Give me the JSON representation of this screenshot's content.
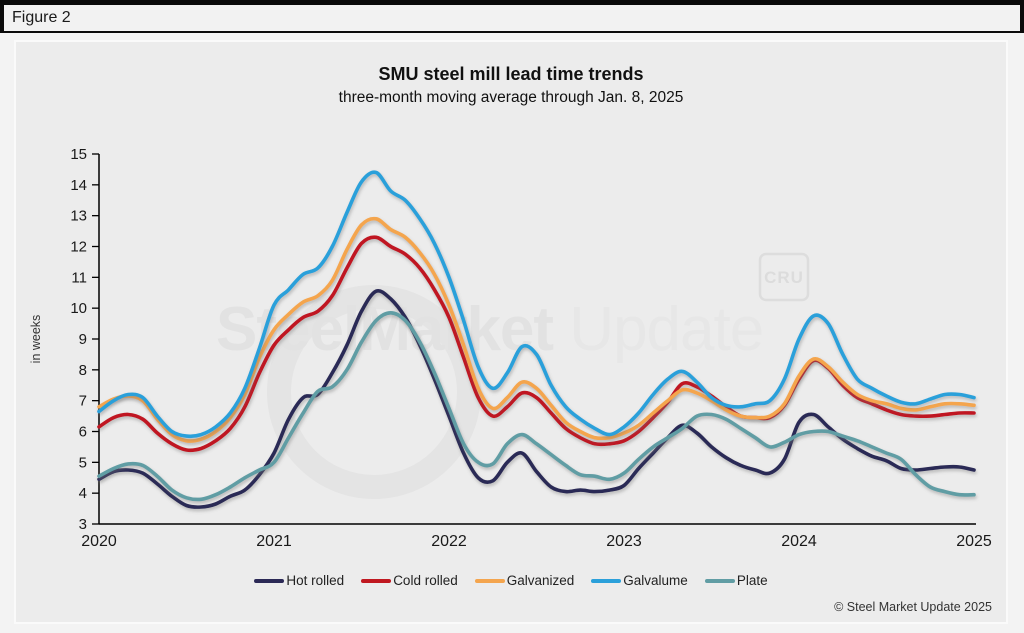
{
  "figure_label": "Figure 2",
  "watermark": {
    "bold_part": "SteelMarket",
    "light_part": " Update",
    "cru_badge": "CRU"
  },
  "footer": {
    "copyright": "© Steel Market Update 2025"
  },
  "colors": {
    "panel_bg": "#ececec",
    "axis": "#000000",
    "hot_rolled": "#2b2956",
    "cold_rolled": "#c01820",
    "galvanized": "#f4a54e",
    "galvalume": "#2ba0da",
    "plate": "#619da4"
  },
  "chart_data": {
    "type": "line",
    "title": "SMU steel mill lead time trends",
    "subtitle": "three-month moving average through Jan. 8, 2025",
    "ylabel": "in weeks",
    "ylim": [
      3,
      15
    ],
    "ytick_step": 1,
    "grid": false,
    "legend_position": "bottom",
    "x_tick_labels": [
      "2020",
      "2021",
      "2022",
      "2023",
      "2024",
      "2025"
    ],
    "x_range_months": 60,
    "x_start": "Jan 2020",
    "x_end": "Jan 8, 2025",
    "series": [
      {
        "name": "Hot rolled",
        "color": "#2b2956",
        "values": [
          4.45,
          4.7,
          4.75,
          4.65,
          4.3,
          3.9,
          3.6,
          3.55,
          3.65,
          3.9,
          4.1,
          4.6,
          5.3,
          6.4,
          7.1,
          7.2,
          7.9,
          8.8,
          9.9,
          10.55,
          10.3,
          9.7,
          8.8,
          7.7,
          6.5,
          5.3,
          4.5,
          4.4,
          5.0,
          5.3,
          4.7,
          4.2,
          4.05,
          4.1,
          4.05,
          4.1,
          4.25,
          4.8,
          5.3,
          5.8,
          6.2,
          5.95,
          5.5,
          5.15,
          4.9,
          4.75,
          4.65,
          5.1,
          6.3,
          6.55,
          6.15,
          5.75,
          5.45,
          5.2,
          5.05,
          4.8,
          4.75,
          4.8,
          4.85,
          4.85,
          4.75
        ]
      },
      {
        "name": "Cold rolled",
        "color": "#c01820",
        "values": [
          6.15,
          6.45,
          6.55,
          6.4,
          5.95,
          5.6,
          5.4,
          5.45,
          5.7,
          6.1,
          6.8,
          7.9,
          8.8,
          9.3,
          9.7,
          9.9,
          10.4,
          11.3,
          12.1,
          12.3,
          12.0,
          11.75,
          11.3,
          10.6,
          9.7,
          8.4,
          7.1,
          6.5,
          6.8,
          7.25,
          7.1,
          6.6,
          6.1,
          5.8,
          5.6,
          5.6,
          5.7,
          6.0,
          6.45,
          6.95,
          7.55,
          7.45,
          7.15,
          6.8,
          6.5,
          6.45,
          6.45,
          6.85,
          7.7,
          8.3,
          8.05,
          7.5,
          7.1,
          6.9,
          6.7,
          6.55,
          6.5,
          6.5,
          6.55,
          6.6,
          6.6
        ]
      },
      {
        "name": "Galvanized",
        "color": "#f4a54e",
        "values": [
          6.8,
          7.05,
          7.15,
          7.0,
          6.4,
          5.9,
          5.7,
          5.75,
          6.0,
          6.45,
          7.2,
          8.4,
          9.3,
          9.8,
          10.2,
          10.4,
          10.9,
          11.9,
          12.7,
          12.9,
          12.55,
          12.3,
          11.8,
          11.1,
          10.1,
          8.8,
          7.4,
          6.75,
          7.1,
          7.6,
          7.4,
          6.85,
          6.3,
          6.0,
          5.8,
          5.8,
          5.95,
          6.2,
          6.6,
          7.0,
          7.35,
          7.25,
          7.0,
          6.7,
          6.5,
          6.45,
          6.5,
          6.9,
          7.8,
          8.35,
          8.1,
          7.6,
          7.2,
          7.0,
          6.9,
          6.75,
          6.7,
          6.8,
          6.9,
          6.9,
          6.85
        ]
      },
      {
        "name": "Galvalume",
        "color": "#2ba0da",
        "values": [
          6.65,
          7.0,
          7.2,
          7.1,
          6.5,
          6.0,
          5.85,
          5.9,
          6.15,
          6.6,
          7.4,
          8.7,
          10.1,
          10.6,
          11.1,
          11.3,
          12.0,
          13.1,
          14.1,
          14.4,
          13.8,
          13.5,
          12.9,
          12.1,
          11.0,
          9.6,
          8.1,
          7.4,
          7.9,
          8.75,
          8.5,
          7.5,
          6.8,
          6.4,
          6.1,
          5.9,
          6.15,
          6.6,
          7.2,
          7.7,
          7.95,
          7.6,
          7.1,
          6.85,
          6.8,
          6.9,
          7.0,
          7.7,
          9.0,
          9.75,
          9.5,
          8.5,
          7.7,
          7.4,
          7.15,
          6.95,
          6.9,
          7.05,
          7.2,
          7.2,
          7.1
        ]
      },
      {
        "name": "Plate",
        "color": "#619da4",
        "values": [
          4.55,
          4.8,
          4.95,
          4.9,
          4.55,
          4.1,
          3.85,
          3.8,
          3.95,
          4.2,
          4.5,
          4.75,
          5.0,
          5.8,
          6.6,
          7.3,
          7.45,
          8.0,
          8.9,
          9.6,
          9.85,
          9.6,
          8.9,
          7.9,
          6.75,
          5.6,
          5.0,
          4.95,
          5.6,
          5.9,
          5.6,
          5.25,
          4.9,
          4.6,
          4.55,
          4.45,
          4.65,
          5.1,
          5.5,
          5.8,
          6.1,
          6.5,
          6.55,
          6.4,
          6.1,
          5.8,
          5.5,
          5.65,
          5.9,
          6.0,
          6.0,
          5.85,
          5.7,
          5.5,
          5.3,
          5.1,
          4.6,
          4.2,
          4.05,
          3.95,
          3.95
        ]
      }
    ]
  }
}
